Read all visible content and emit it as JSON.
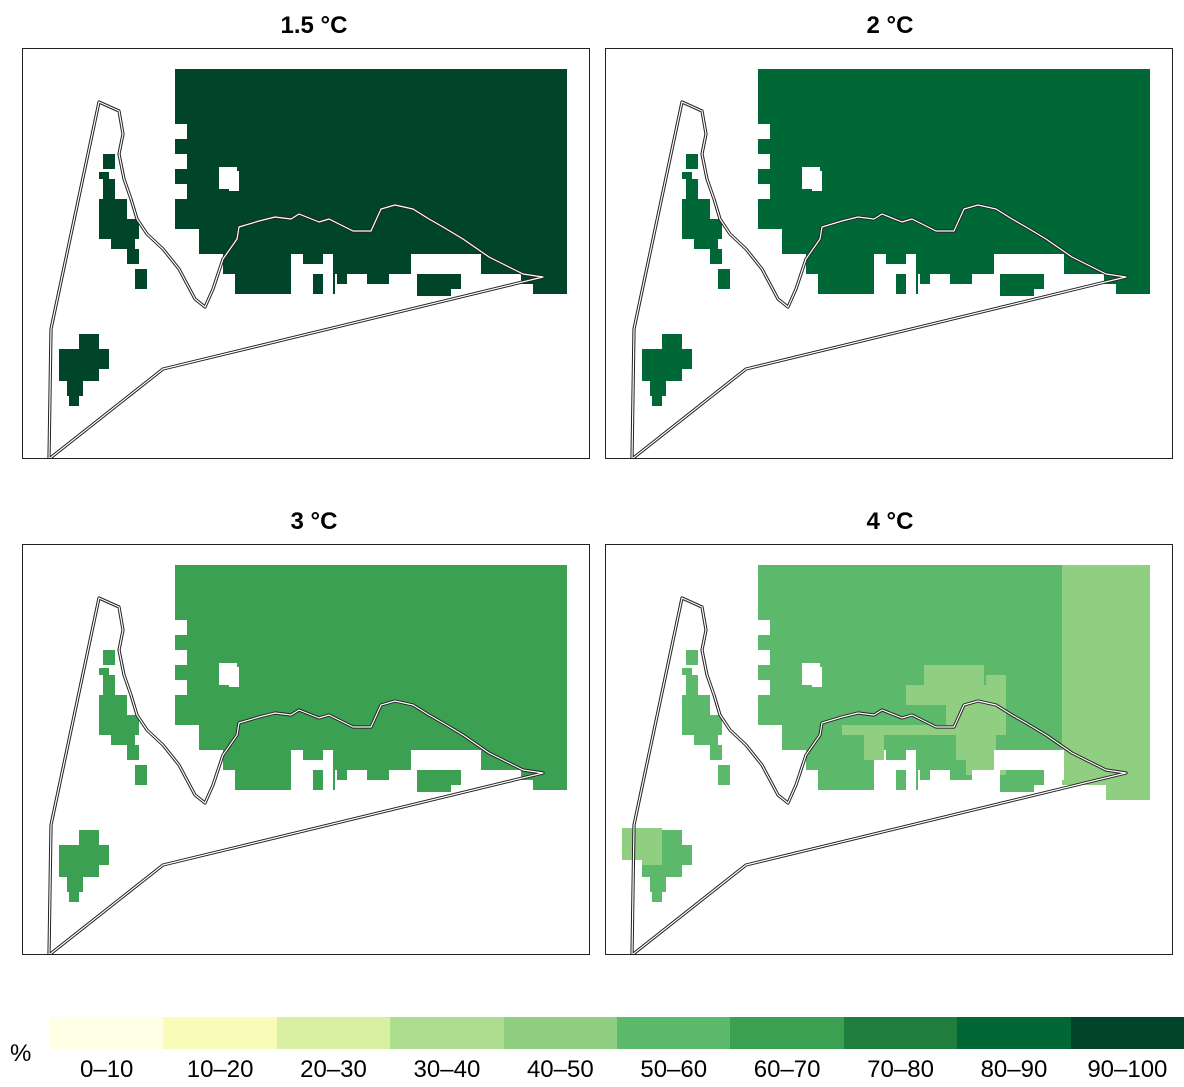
{
  "panels": [
    {
      "title": "1.5 °C",
      "main_color": "#00452a",
      "light_color": null
    },
    {
      "title": "2 °C",
      "main_color": "#006837",
      "light_color": null
    },
    {
      "title": "3 °C",
      "main_color": "#3ba052",
      "light_color": null
    },
    {
      "title": "4 °C",
      "main_color": "#5cb86a",
      "light_color": "#90cf82"
    }
  ],
  "legend": {
    "unit": "%",
    "classes": [
      {
        "label": "0–10",
        "color": "#ffffe5"
      },
      {
        "label": "10–20",
        "color": "#f7fcb9"
      },
      {
        "label": "20–30",
        "color": "#d9f0a3"
      },
      {
        "label": "30–40",
        "color": "#addd8e"
      },
      {
        "label": "40–50",
        "color": "#90cf82"
      },
      {
        "label": "50–60",
        "color": "#5cb86a"
      },
      {
        "label": "60–70",
        "color": "#3ba052"
      },
      {
        "label": "70–80",
        "color": "#1f7e3e"
      },
      {
        "label": "80–90",
        "color": "#006837"
      },
      {
        "label": "90–100",
        "color": "#00452a"
      }
    ]
  }
}
